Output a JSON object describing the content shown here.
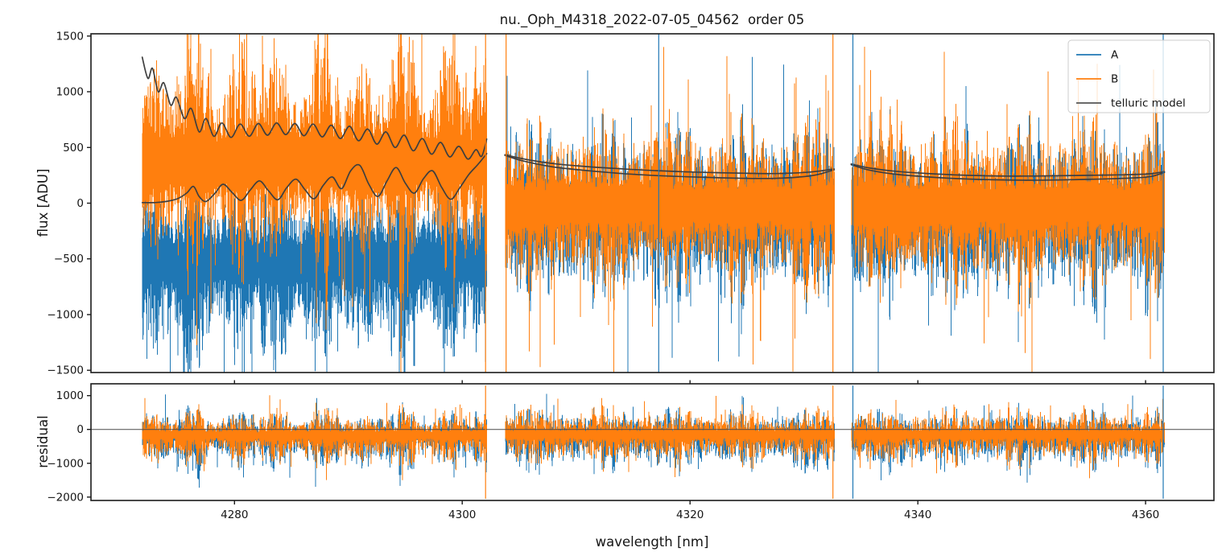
{
  "figure": {
    "title": "nu._Oph_M4318_2022-07-05_04562  order 05",
    "background": "#ffffff"
  },
  "chart_data": {
    "type": "line",
    "title": "nu._Oph_M4318_2022-07-05_04562  order 05",
    "xlabel": "wavelength [nm]",
    "xlim": [
      4267.4,
      4366.0
    ],
    "xticks": [
      4280,
      4300,
      4320,
      4340,
      4360
    ],
    "grid": false,
    "colors": {
      "A": "#1f77b4",
      "B": "#ff7f0e",
      "telluric": "#3f3f3f",
      "legend_telluric_sample": "#555555",
      "zero_line": "#4a4a4a",
      "spine": "#1b1b1b"
    },
    "legend": {
      "position": "upper right",
      "entries": [
        {
          "label": "A",
          "color_key": "A"
        },
        {
          "label": "B",
          "color_key": "B"
        },
        {
          "label": "telluric model",
          "color_key": "legend_telluric_sample"
        }
      ]
    },
    "panels": [
      {
        "name": "flux",
        "ylabel": "flux [ADU]",
        "ylim": [
          -1520,
          1520
        ],
        "yticks": [
          1500,
          1000,
          500,
          0,
          -500,
          -1000,
          -1500
        ]
      },
      {
        "name": "residual",
        "ylabel": "residual",
        "ylim": [
          -2100,
          1350
        ],
        "yticks": [
          1000,
          0,
          -1000,
          -2000
        ],
        "zero_line": 0
      }
    ],
    "segments": [
      {
        "start": 4271.9,
        "end": 4302.15
      },
      {
        "start": 4303.75,
        "end": 4332.65
      },
      {
        "start": 4334.15,
        "end": 4361.65
      }
    ],
    "series_names": [
      "A",
      "B"
    ],
    "telluric_model": {
      "segments": [
        {
          "upper": [
            [
              4271.9,
              1310
            ],
            [
              4272.4,
              1120
            ],
            [
              4272.8,
              1210
            ],
            [
              4273.3,
              1000
            ],
            [
              4273.8,
              1080
            ],
            [
              4274.4,
              880
            ],
            [
              4274.9,
              950
            ],
            [
              4275.6,
              760
            ],
            [
              4276.2,
              850
            ],
            [
              4276.9,
              640
            ],
            [
              4277.5,
              760
            ],
            [
              4278.2,
              600
            ],
            [
              4278.9,
              720
            ],
            [
              4279.7,
              590
            ],
            [
              4280.5,
              710
            ],
            [
              4281.3,
              600
            ],
            [
              4282.1,
              715
            ],
            [
              4282.9,
              610
            ],
            [
              4283.7,
              720
            ],
            [
              4284.5,
              615
            ],
            [
              4285.3,
              715
            ],
            [
              4286.1,
              605
            ],
            [
              4286.9,
              710
            ],
            [
              4287.7,
              595
            ],
            [
              4288.5,
              700
            ],
            [
              4289.3,
              580
            ],
            [
              4290.1,
              690
            ],
            [
              4290.9,
              560
            ],
            [
              4291.7,
              665
            ],
            [
              4292.5,
              530
            ],
            [
              4293.3,
              640
            ],
            [
              4294.1,
              500
            ],
            [
              4294.9,
              610
            ],
            [
              4295.7,
              470
            ],
            [
              4296.5,
              580
            ],
            [
              4297.3,
              440
            ],
            [
              4298.1,
              545
            ],
            [
              4298.9,
              415
            ],
            [
              4299.7,
              510
            ],
            [
              4300.5,
              395
            ],
            [
              4301.2,
              480
            ],
            [
              4301.7,
              420
            ],
            [
              4302.15,
              575
            ]
          ],
          "lower": [
            [
              4271.9,
              5
            ],
            [
              4273.0,
              5
            ],
            [
              4274.0,
              15
            ],
            [
              4275.0,
              40
            ],
            [
              4275.8,
              90
            ],
            [
              4276.4,
              150
            ],
            [
              4276.9,
              60
            ],
            [
              4277.5,
              15
            ],
            [
              4278.3,
              90
            ],
            [
              4279.0,
              170
            ],
            [
              4279.8,
              95
            ],
            [
              4280.6,
              25
            ],
            [
              4281.4,
              120
            ],
            [
              4282.2,
              200
            ],
            [
              4283.0,
              110
            ],
            [
              4283.8,
              30
            ],
            [
              4284.6,
              140
            ],
            [
              4285.4,
              215
            ],
            [
              4286.2,
              120
            ],
            [
              4287.0,
              40
            ],
            [
              4287.8,
              160
            ],
            [
              4288.6,
              235
            ],
            [
              4289.4,
              130
            ],
            [
              4290.2,
              290
            ],
            [
              4291.0,
              340
            ],
            [
              4291.8,
              170
            ],
            [
              4292.6,
              60
            ],
            [
              4293.4,
              200
            ],
            [
              4294.2,
              320
            ],
            [
              4295.0,
              180
            ],
            [
              4295.8,
              90
            ],
            [
              4296.6,
              220
            ],
            [
              4297.4,
              290
            ],
            [
              4298.2,
              140
            ],
            [
              4299.0,
              35
            ],
            [
              4299.8,
              140
            ],
            [
              4300.6,
              260
            ],
            [
              4301.4,
              350
            ],
            [
              4302.15,
              445
            ]
          ]
        },
        {
          "upper": [
            [
              4303.75,
              435
            ],
            [
              4305.5,
              395
            ],
            [
              4308,
              355
            ],
            [
              4311,
              328
            ],
            [
              4314,
              308
            ],
            [
              4317,
              292
            ],
            [
              4320,
              280
            ],
            [
              4323,
              272
            ],
            [
              4325.5,
              267
            ],
            [
              4327.5,
              266
            ],
            [
              4329.5,
              272
            ],
            [
              4331,
              284
            ],
            [
              4332.65,
              307
            ]
          ],
          "lower": [
            [
              4303.75,
              428
            ],
            [
              4305.5,
              375
            ],
            [
              4308,
              325
            ],
            [
              4311,
              292
            ],
            [
              4314,
              266
            ],
            [
              4317,
              248
            ],
            [
              4320,
              236
            ],
            [
              4323,
              227
            ],
            [
              4325.5,
              222
            ],
            [
              4327.5,
              223
            ],
            [
              4329.5,
              234
            ],
            [
              4331,
              252
            ],
            [
              4332.65,
              300
            ]
          ]
        },
        {
          "upper": [
            [
              4334.15,
              352
            ],
            [
              4335.8,
              315
            ],
            [
              4338,
              287
            ],
            [
              4340.5,
              268
            ],
            [
              4343.5,
              253
            ],
            [
              4346.5,
              245
            ],
            [
              4349.5,
              243
            ],
            [
              4352.5,
              246
            ],
            [
              4355,
              250
            ],
            [
              4357,
              253
            ],
            [
              4359,
              257
            ],
            [
              4360.5,
              264
            ],
            [
              4361.65,
              283
            ]
          ],
          "lower": [
            [
              4334.15,
              345
            ],
            [
              4335.8,
              295
            ],
            [
              4338,
              260
            ],
            [
              4340.5,
              238
            ],
            [
              4343.5,
              220
            ],
            [
              4346.5,
              210
            ],
            [
              4349.5,
              206
            ],
            [
              4352.5,
              209
            ],
            [
              4355,
              214
            ],
            [
              4357,
              219
            ],
            [
              4359,
              227
            ],
            [
              4360.5,
              240
            ],
            [
              4361.65,
              276
            ]
          ]
        }
      ]
    },
    "noise_model": {
      "flux": {
        "segments": [
          {
            "A": {
              "center": -520,
              "base_up": 260,
              "amp_up": 900,
              "exp_up": 2.1,
              "base_dn": 270,
              "amp_dn": 1150,
              "exp_dn": 1.9,
              "spike_p": 0.012,
              "spike_amp": 650
            },
            "B": {
              "center": 370,
              "base_up": 330,
              "amp_up": 1200,
              "exp_up": 1.45,
              "base_dn": 310,
              "amp_dn": 1100,
              "exp_dn": 1.9,
              "spike_p": 0.015,
              "spike_amp": 650
            }
          },
          {
            "A": {
              "center": -60,
              "base_up": 180,
              "amp_up": 820,
              "exp_up": 2.0,
              "base_dn": 210,
              "amp_dn": 980,
              "exp_dn": 1.9,
              "spike_p": 0.012,
              "spike_amp": 750
            },
            "B": {
              "center": -20,
              "base_up": 210,
              "amp_up": 760,
              "exp_up": 1.85,
              "base_dn": 220,
              "amp_dn": 820,
              "exp_dn": 1.85,
              "spike_p": 0.013,
              "spike_amp": 750
            }
          },
          {
            "A": {
              "center": -60,
              "base_up": 180,
              "amp_up": 820,
              "exp_up": 2.0,
              "base_dn": 210,
              "amp_dn": 980,
              "exp_dn": 1.9,
              "spike_p": 0.012,
              "spike_amp": 750
            },
            "B": {
              "center": -20,
              "base_up": 210,
              "amp_up": 760,
              "exp_up": 1.85,
              "base_dn": 220,
              "amp_dn": 820,
              "exp_dn": 1.85,
              "spike_p": 0.013,
              "spike_amp": 750
            }
          }
        ]
      },
      "residual": {
        "segments": [
          {
            "A": {
              "center": -190,
              "base_up": 150,
              "amp_up": 950,
              "exp_up": 2.3,
              "base_dn": 180,
              "amp_dn": 1450,
              "exp_dn": 2.2,
              "spike_p": 0.01,
              "spike_amp": 550
            },
            "B": {
              "center": -170,
              "base_up": 160,
              "amp_up": 900,
              "exp_up": 2.2,
              "base_dn": 170,
              "amp_dn": 1200,
              "exp_dn": 2.1,
              "spike_p": 0.013,
              "spike_amp": 500
            }
          },
          {
            "A": {
              "center": -180,
              "base_up": 130,
              "amp_up": 850,
              "exp_up": 2.4,
              "base_dn": 160,
              "amp_dn": 1200,
              "exp_dn": 2.3,
              "spike_p": 0.009,
              "spike_amp": 600
            },
            "B": {
              "center": -150,
              "base_up": 150,
              "amp_up": 820,
              "exp_up": 2.3,
              "base_dn": 160,
              "amp_dn": 1000,
              "exp_dn": 2.2,
              "spike_p": 0.012,
              "spike_amp": 550
            }
          },
          {
            "A": {
              "center": -180,
              "base_up": 130,
              "amp_up": 850,
              "exp_up": 2.4,
              "base_dn": 160,
              "amp_dn": 1200,
              "exp_dn": 2.3,
              "spike_p": 0.009,
              "spike_amp": 600
            },
            "B": {
              "center": -150,
              "base_up": 150,
              "amp_up": 820,
              "exp_up": 2.3,
              "base_dn": 160,
              "amp_dn": 1000,
              "exp_dn": 2.2,
              "spike_p": 0.012,
              "spike_amp": 550
            }
          }
        ]
      }
    },
    "edge_spikes": {
      "flux": [
        {
          "wavelength": 4302.05,
          "series": "B"
        },
        {
          "wavelength": 4303.85,
          "series": "B"
        },
        {
          "wavelength": 4317.25,
          "series": "A"
        },
        {
          "wavelength": 4332.55,
          "series": "B"
        },
        {
          "wavelength": 4334.3,
          "series": "A"
        },
        {
          "wavelength": 4361.55,
          "series": "A"
        }
      ],
      "residual": [
        {
          "wavelength": 4302.05,
          "series": "B"
        },
        {
          "wavelength": 4332.55,
          "series": "B"
        },
        {
          "wavelength": 4334.3,
          "series": "A"
        },
        {
          "wavelength": 4361.55,
          "series": "A"
        }
      ]
    }
  }
}
